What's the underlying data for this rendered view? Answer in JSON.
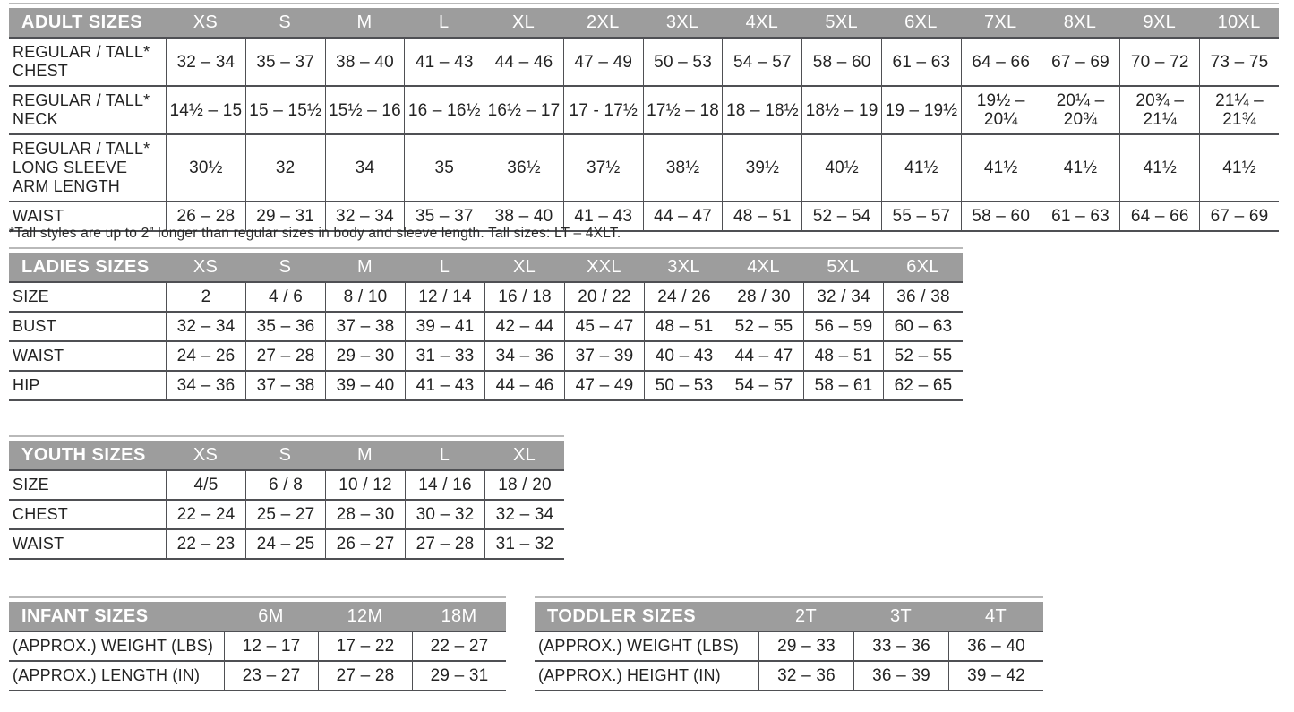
{
  "colors": {
    "header_bg": "#9d9d9d",
    "header_text": "#ffffff",
    "body_text": "#232323",
    "border": "#4f5054",
    "hairline": "#b9b9b9",
    "page_bg": "#ffffff"
  },
  "footnote": "*Tall styles are up to 2” longer than regular sizes in body and sleeve length. Tall sizes: LT – 4XLT.",
  "tables": [
    {
      "id": "adult",
      "title": "ADULT SIZES",
      "columns": [
        "XS",
        "S",
        "M",
        "L",
        "XL",
        "2XL",
        "3XL",
        "4XL",
        "5XL",
        "6XL",
        "7XL",
        "8XL",
        "9XL",
        "10XL"
      ],
      "rows": [
        {
          "label": "REGULAR / TALL*\nCHEST",
          "values": [
            "32 – 34",
            "35 – 37",
            "38 – 40",
            "41 – 43",
            "44 – 46",
            "47 – 49",
            "50 – 53",
            "54 – 57",
            "58 – 60",
            "61 – 63",
            "64 – 66",
            "67 – 69",
            "70 – 72",
            "73 – 75"
          ]
        },
        {
          "label": "REGULAR / TALL*\nNECK",
          "values": [
            "14½ – 15",
            "15 – 15½",
            "15½ – 16",
            "16 – 16½",
            "16½ – 17",
            "17 - 17½",
            "17½ – 18",
            "18 – 18½",
            "18½ – 19",
            "19 – 19½",
            "19½ –\n20¼",
            "20¼ –\n20¾",
            "20¾ –\n21¼",
            "21¼ –\n21¾"
          ]
        },
        {
          "label": "REGULAR / TALL*\nLONG SLEEVE\nARM LENGTH",
          "values": [
            "30½",
            "32",
            "34",
            "35",
            "36½",
            "37½",
            "38½",
            "39½",
            "40½",
            "41½",
            "41½",
            "41½",
            "41½",
            "41½"
          ]
        },
        {
          "label": "WAIST",
          "values": [
            "26 – 28",
            "29 – 31",
            "32 – 34",
            "35 – 37",
            "38 – 40",
            "41 – 43",
            "44 – 47",
            "48 – 51",
            "52 – 54",
            "55 – 57",
            "58 – 60",
            "61 – 63",
            "64 – 66",
            "67 – 69"
          ]
        }
      ]
    },
    {
      "id": "ladies",
      "title": "LADIES SIZES",
      "columns": [
        "XS",
        "S",
        "M",
        "L",
        "XL",
        "XXL",
        "3XL",
        "4XL",
        "5XL",
        "6XL"
      ],
      "rows": [
        {
          "label": "SIZE",
          "values": [
            "2",
            "4 / 6",
            "8 / 10",
            "12 / 14",
            "16 / 18",
            "20 / 22",
            "24 / 26",
            "28 / 30",
            "32 / 34",
            "36 / 38"
          ]
        },
        {
          "label": "BUST",
          "values": [
            "32 – 34",
            "35 – 36",
            "37 – 38",
            "39 – 41",
            "42 – 44",
            "45 – 47",
            "48 – 51",
            "52 – 55",
            "56 – 59",
            "60 – 63"
          ]
        },
        {
          "label": "WAIST",
          "values": [
            "24 – 26",
            "27 – 28",
            "29 – 30",
            "31 – 33",
            "34 – 36",
            "37 – 39",
            "40 – 43",
            "44 – 47",
            "48 – 51",
            "52 – 55"
          ]
        },
        {
          "label": "HIP",
          "values": [
            "34 – 36",
            "37 – 38",
            "39 – 40",
            "41 – 43",
            "44 – 46",
            "47 – 49",
            "50 – 53",
            "54 – 57",
            "58 – 61",
            "62 – 65"
          ]
        }
      ]
    },
    {
      "id": "youth",
      "title": "YOUTH SIZES",
      "columns": [
        "XS",
        "S",
        "M",
        "L",
        "XL"
      ],
      "rows": [
        {
          "label": "SIZE",
          "values": [
            "4/5",
            "6 / 8",
            "10 / 12",
            "14 / 16",
            "18 / 20"
          ]
        },
        {
          "label": "CHEST",
          "values": [
            "22 – 24",
            "25 – 27",
            "28 – 30",
            "30 – 32",
            "32 – 34"
          ]
        },
        {
          "label": "WAIST",
          "values": [
            "22 – 23",
            "24 – 25",
            "26 – 27",
            "27 – 28",
            "31 – 32"
          ]
        }
      ]
    },
    {
      "id": "infant",
      "title": "INFANT SIZES",
      "columns": [
        "6M",
        "12M",
        "18M"
      ],
      "rows": [
        {
          "label": "(APPROX.) WEIGHT (LBS)",
          "values": [
            "12 – 17",
            "17 – 22",
            "22 – 27"
          ]
        },
        {
          "label": "(APPROX.) LENGTH (IN)",
          "values": [
            "23 – 27",
            "27 – 28",
            "29 – 31"
          ]
        }
      ]
    },
    {
      "id": "toddler",
      "title": "TODDLER SIZES",
      "columns": [
        "2T",
        "3T",
        "4T"
      ],
      "rows": [
        {
          "label": "(APPROX.) WEIGHT (LBS)",
          "values": [
            "29 – 33",
            "33 – 36",
            "36 – 40"
          ]
        },
        {
          "label": "(APPROX.) HEIGHT (IN)",
          "values": [
            "32 – 36",
            "36 – 39",
            "39 – 42"
          ]
        }
      ]
    }
  ]
}
